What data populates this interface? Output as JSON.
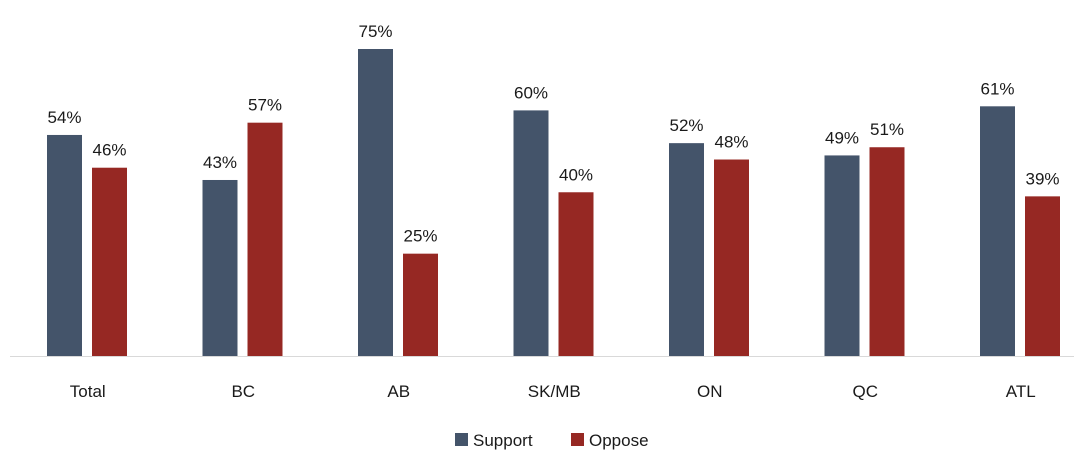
{
  "chart_data": {
    "type": "bar",
    "categories": [
      "Total",
      "BC",
      "AB",
      "SK/MB",
      "ON",
      "QC",
      "ATL"
    ],
    "series": [
      {
        "name": "Support",
        "color": "#44546a",
        "values": [
          54,
          43,
          75,
          60,
          52,
          49,
          61
        ],
        "labels": [
          "54%",
          "43%",
          "75%",
          "60%",
          "52%",
          "49%",
          "61%"
        ]
      },
      {
        "name": "Oppose",
        "color": "#962823",
        "values": [
          46,
          57,
          25,
          40,
          48,
          51,
          39
        ],
        "labels": [
          "46%",
          "57%",
          "25%",
          "40%",
          "48%",
          "51%",
          "39%"
        ]
      }
    ],
    "title": "",
    "xlabel": "",
    "ylabel": "",
    "ylim": [
      0,
      75
    ],
    "grid": false,
    "legend_position": "bottom",
    "axis_color": "#d9d9d9"
  }
}
